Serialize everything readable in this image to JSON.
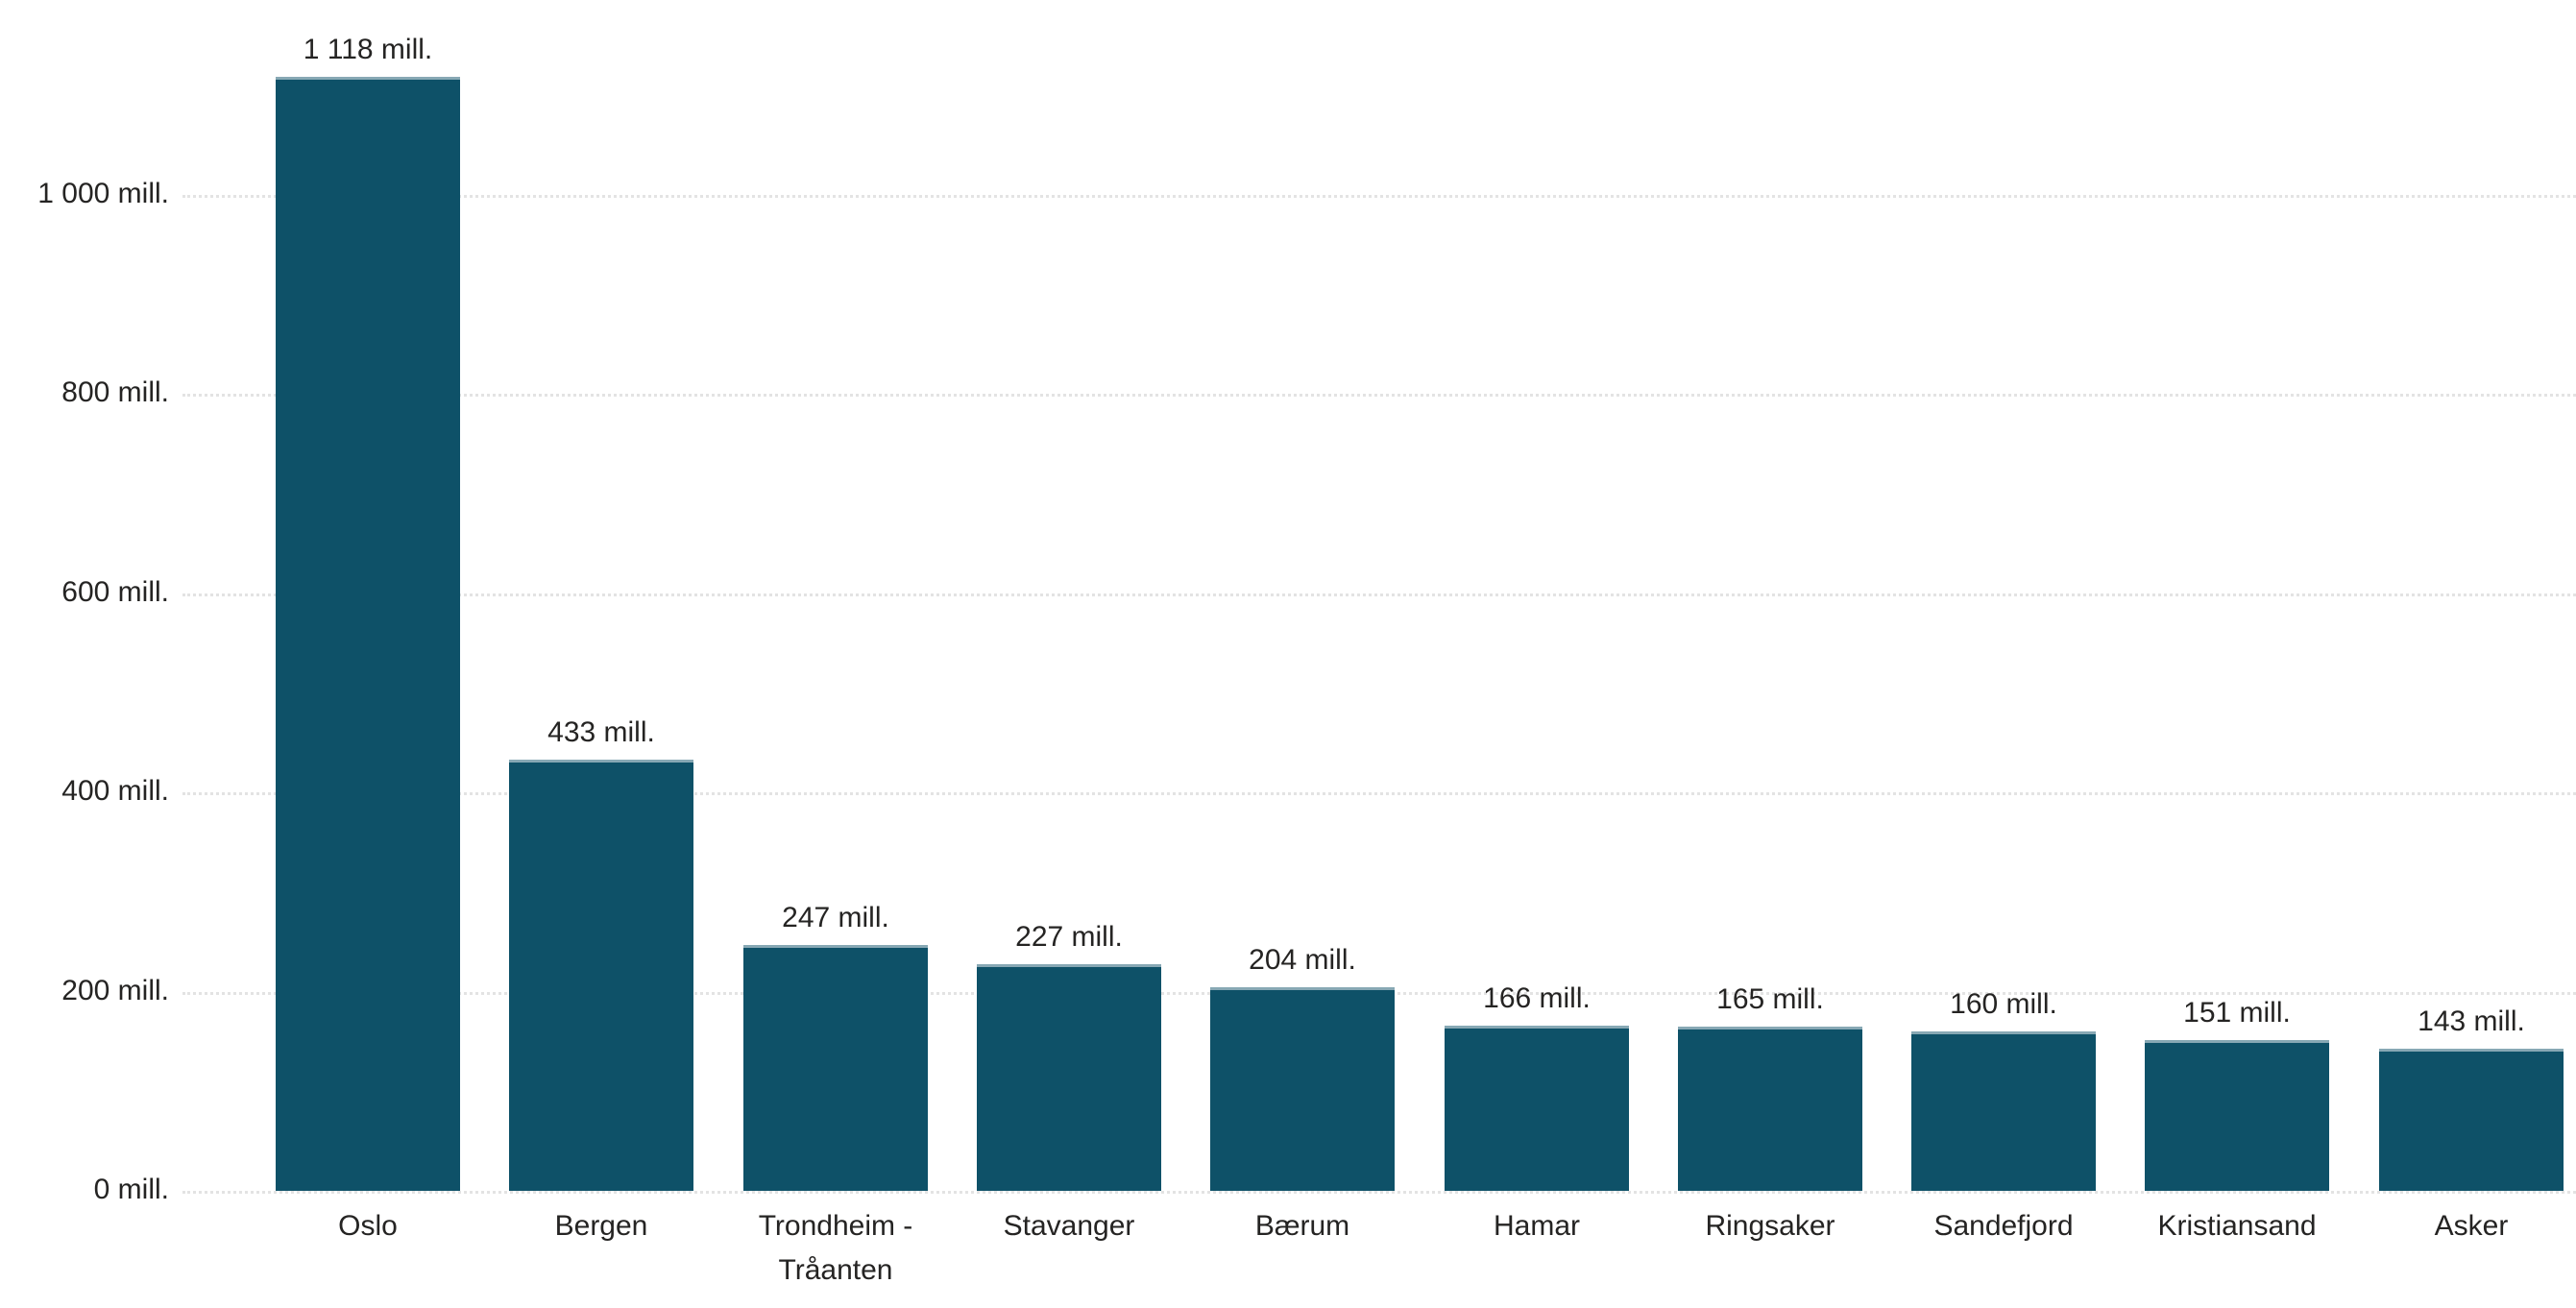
{
  "chart_data": {
    "type": "bar",
    "title": "",
    "xlabel": "",
    "ylabel": "",
    "unit_suffix": "mill.",
    "categories": [
      "Oslo",
      "Bergen",
      "Trondheim - Tråanten",
      "Stavanger",
      "Bærum",
      "Hamar",
      "Ringsaker",
      "Sandefjord",
      "Kristiansand",
      "Asker"
    ],
    "values": [
      1118,
      433,
      247,
      227,
      204,
      166,
      165,
      160,
      151,
      143
    ],
    "data_labels": [
      "1 118 mill.",
      "433 mill.",
      "247 mill.",
      "227 mill.",
      "204 mill.",
      "166 mill.",
      "165 mill.",
      "160 mill.",
      "151 mill.",
      "143 mill."
    ],
    "y_ticks": [
      {
        "value": 0,
        "label": "0 mill."
      },
      {
        "value": 200,
        "label": "200 mill."
      },
      {
        "value": 400,
        "label": "400 mill."
      },
      {
        "value": 600,
        "label": "600 mill."
      },
      {
        "value": 800,
        "label": "800 mill."
      },
      {
        "value": 1000,
        "label": "1 000 mill."
      }
    ],
    "ylim": [
      0,
      1200
    ],
    "grid": "horizontal-dotted",
    "legend": "none",
    "colors": {
      "bar": "#0e5168",
      "text": "#252423",
      "gridline": "#e3e3e3",
      "background": "#ffffff"
    }
  }
}
